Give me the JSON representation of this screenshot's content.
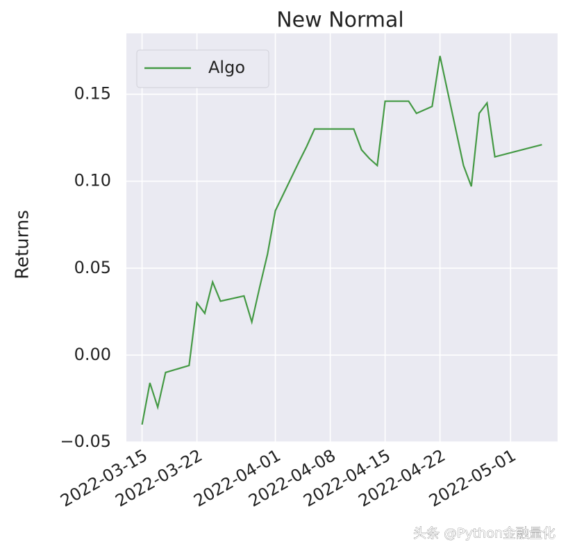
{
  "chart_data": {
    "type": "line",
    "title": "New Normal",
    "y_label": "Returns",
    "x": [
      "2022-03-15",
      "2022-03-16",
      "2022-03-17",
      "2022-03-18",
      "2022-03-21",
      "2022-03-22",
      "2022-03-23",
      "2022-03-24",
      "2022-03-25",
      "2022-03-28",
      "2022-03-29",
      "2022-03-30",
      "2022-03-31",
      "2022-04-01",
      "2022-04-04",
      "2022-04-05",
      "2022-04-06",
      "2022-04-07",
      "2022-04-08",
      "2022-04-11",
      "2022-04-12",
      "2022-04-13",
      "2022-04-14",
      "2022-04-15",
      "2022-04-18",
      "2022-04-19",
      "2022-04-20",
      "2022-04-21",
      "2022-04-22",
      "2022-04-25",
      "2022-04-26",
      "2022-04-27",
      "2022-04-28",
      "2022-04-29",
      "2022-05-05"
    ],
    "series": [
      {
        "name": "Algo",
        "color": "#449944",
        "values": [
          -0.04,
          -0.016,
          -0.03,
          -0.01,
          -0.006,
          0.03,
          0.024,
          0.042,
          0.031,
          0.034,
          0.019,
          0.039,
          0.058,
          0.083,
          0.111,
          0.12,
          0.13,
          0.13,
          0.13,
          0.13,
          0.118,
          0.113,
          0.109,
          0.146,
          0.146,
          0.139,
          0.141,
          0.143,
          0.172,
          0.109,
          0.097,
          0.139,
          0.145,
          0.114,
          0.121
        ]
      }
    ],
    "xlim": [
      "2022-03-13",
      "2022-05-07"
    ],
    "xticks": [
      "2022-03-15",
      "2022-03-22",
      "2022-04-01",
      "2022-04-08",
      "2022-04-15",
      "2022-04-22",
      "2022-05-01"
    ],
    "ylim": [
      -0.05,
      0.185
    ],
    "yticks": [
      {
        "value": -0.05,
        "label": "−0.05"
      },
      {
        "value": 0,
        "label": "0.00"
      },
      {
        "value": 0.05,
        "label": "0.05"
      },
      {
        "value": 0.1,
        "label": "0.10"
      },
      {
        "value": 0.15,
        "label": "0.15"
      }
    ],
    "grid": true,
    "legend": "upper left",
    "watermark": "头条 @Python金融量化"
  }
}
